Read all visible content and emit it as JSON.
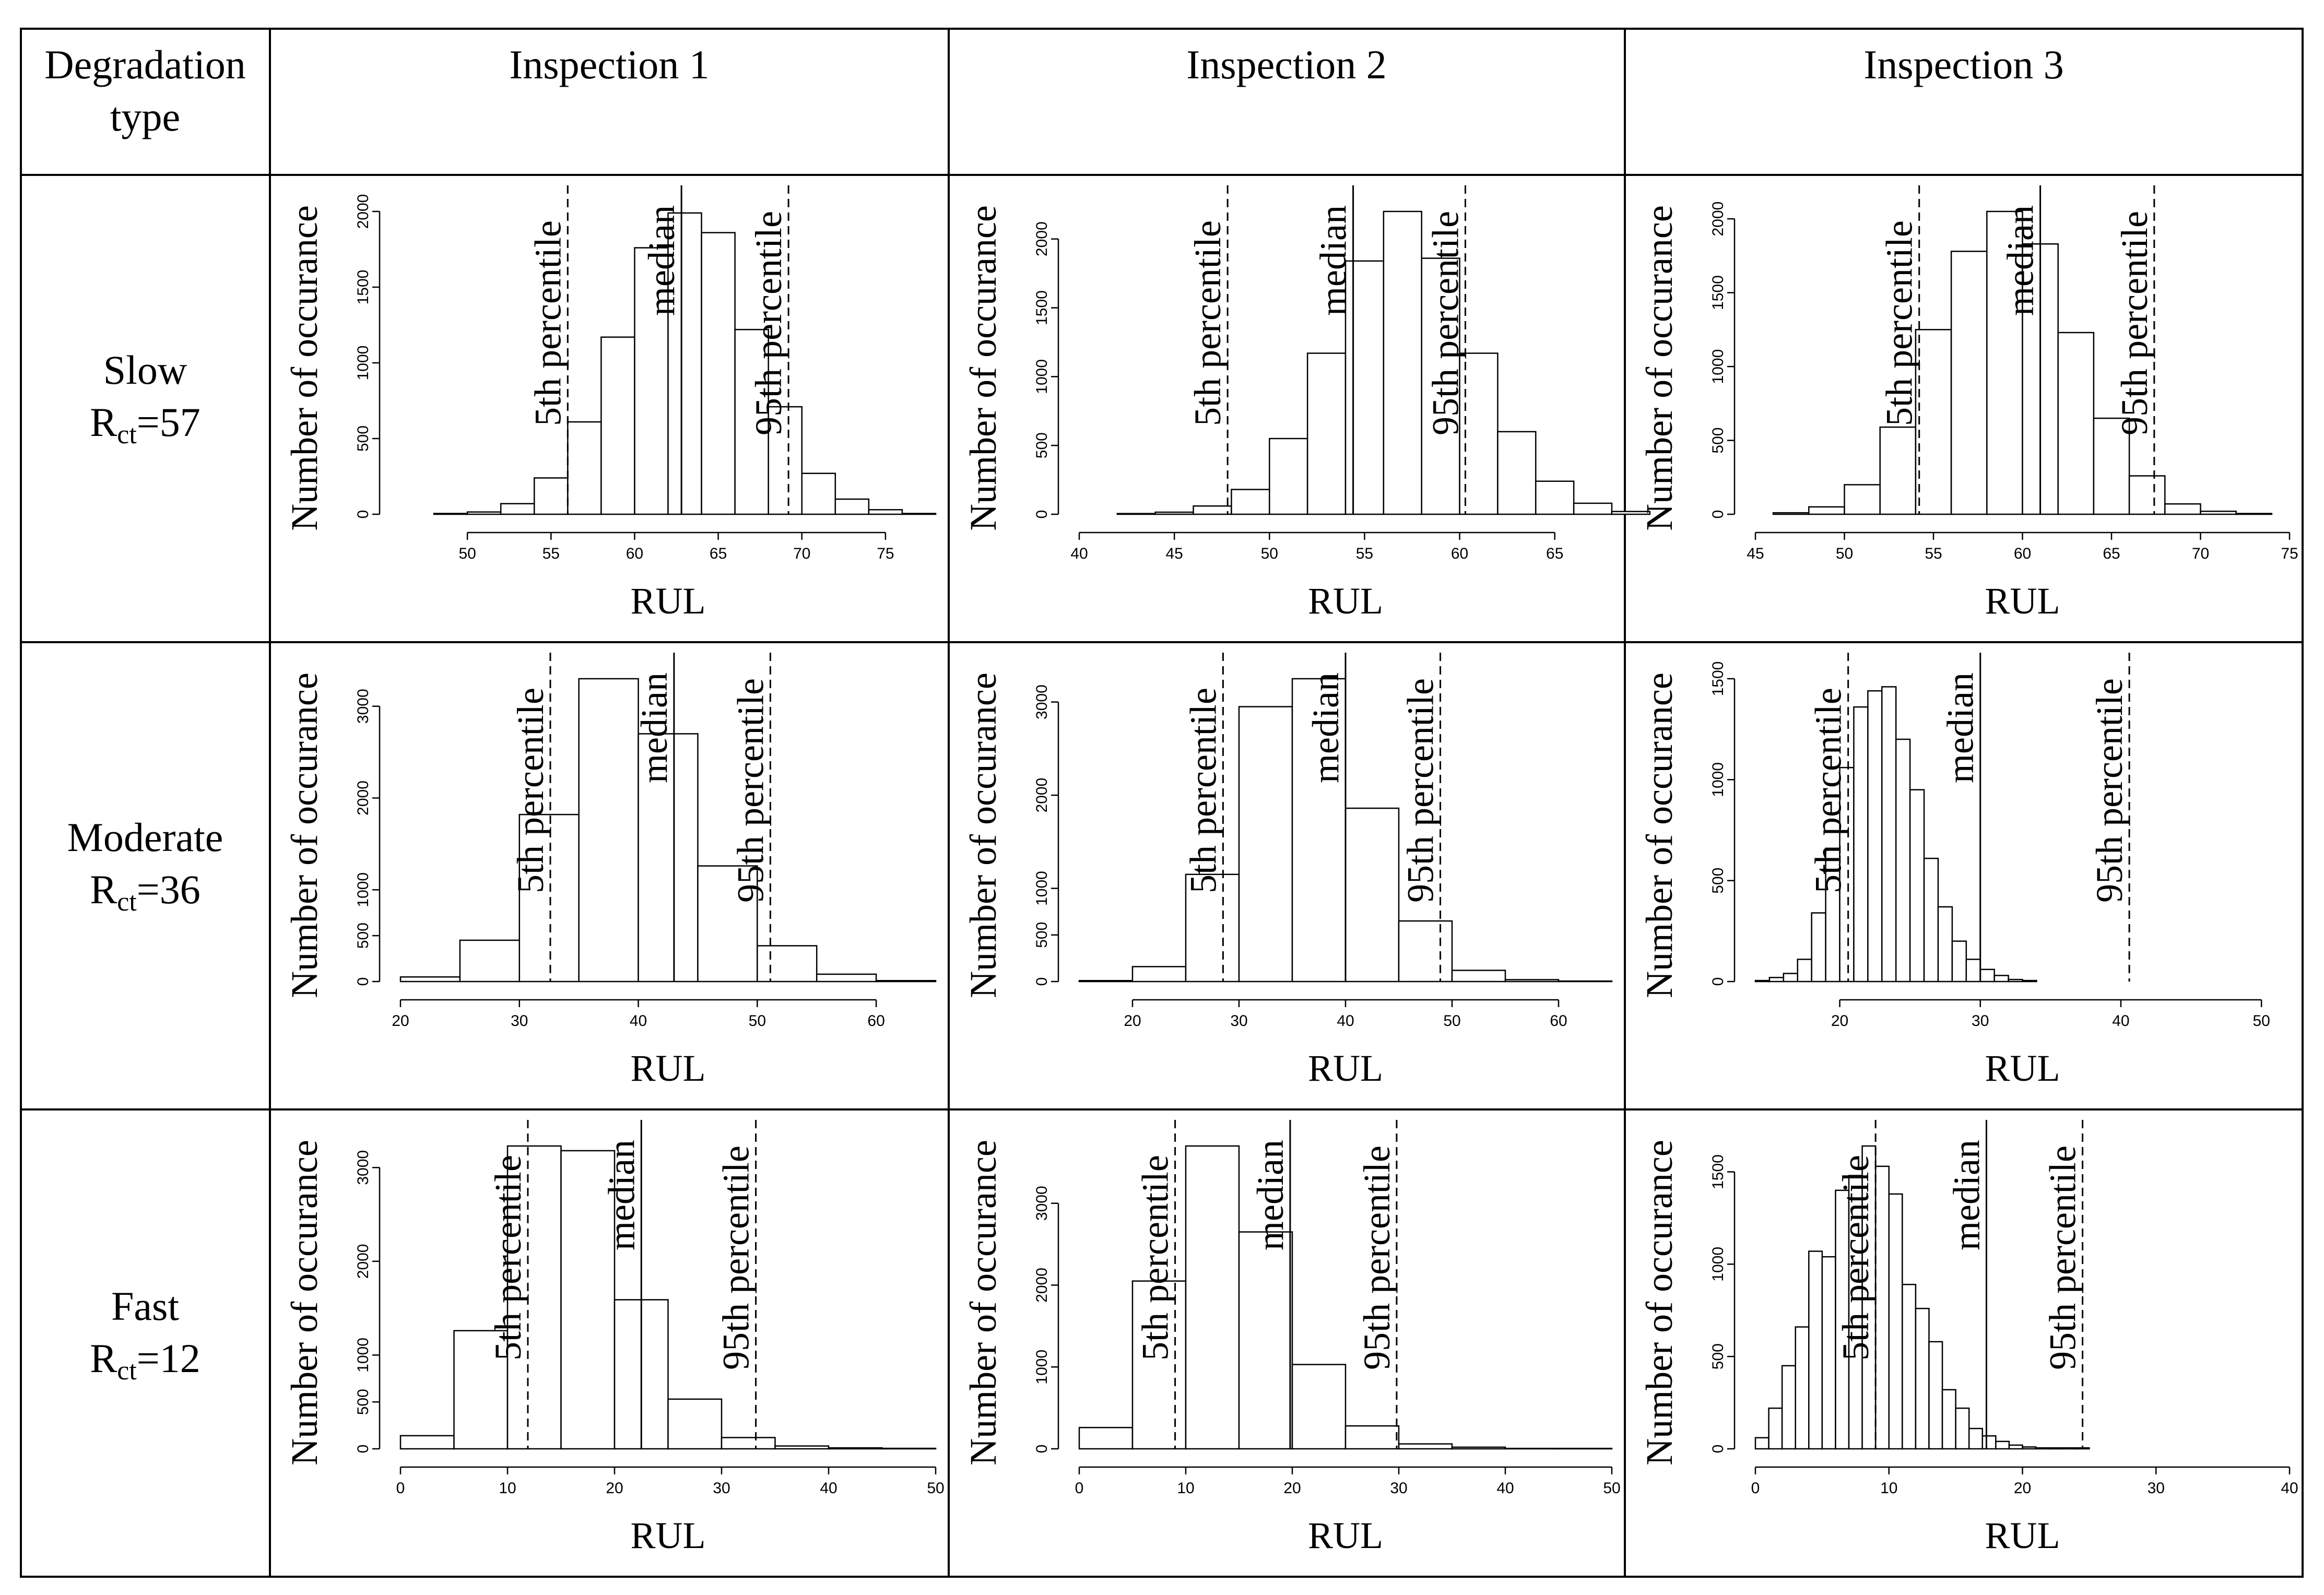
{
  "table": {
    "corner_header": [
      "Degradation",
      "type"
    ],
    "column_headers": [
      "Inspection 1",
      "Inspection 2",
      "Inspection 3"
    ],
    "row_labels": [
      {
        "name": "Slow",
        "r_base": "R",
        "r_sub": "ct",
        "r_value": "=57"
      },
      {
        "name": "Moderate",
        "r_base": "R",
        "r_sub": "ct",
        "r_value": "=36"
      },
      {
        "name": "Fast",
        "r_base": "R",
        "r_sub": "ct",
        "r_value": "=12"
      }
    ]
  },
  "labels": {
    "xlabel": "RUL",
    "ylabel": "Number of occurance",
    "p5": "5th percentile",
    "median": "median",
    "p95": "95th percentile"
  },
  "chart_data": [
    {
      "id": "slow-insp1",
      "type": "bar",
      "xlabel": "RUL",
      "ylabel": "Number of occurance",
      "bin_start": 46,
      "bin_width": 2,
      "counts": [
        0,
        5,
        15,
        70,
        240,
        610,
        1170,
        1760,
        1990,
        1860,
        1220,
        710,
        270,
        100,
        30,
        5
      ],
      "xlim": [
        46,
        78
      ],
      "ylim": [
        0,
        2000
      ],
      "xticks": [
        50,
        55,
        60,
        65,
        70,
        75
      ],
      "yticks": [
        0,
        500,
        1000,
        1500,
        2000
      ],
      "p5": 56,
      "median": 62.8,
      "p95": 69.2
    },
    {
      "id": "slow-insp2",
      "type": "bar",
      "xlabel": "RUL",
      "ylabel": "Number of occurance",
      "bin_start": 40,
      "bin_width": 2,
      "counts": [
        0,
        5,
        15,
        60,
        180,
        550,
        1170,
        1840,
        2200,
        1860,
        1170,
        600,
        240,
        80,
        20
      ],
      "xlim": [
        40,
        68
      ],
      "ylim": [
        0,
        2200
      ],
      "xticks": [
        40,
        45,
        50,
        55,
        60,
        65
      ],
      "yticks": [
        0,
        500,
        1000,
        1500,
        2000
      ],
      "p5": 47.8,
      "median": 54.4,
      "p95": 60.3
    },
    {
      "id": "slow-insp3",
      "type": "bar",
      "xlabel": "RUL",
      "ylabel": "Number of occurance",
      "bin_start": 46,
      "bin_width": 2,
      "counts": [
        10,
        50,
        200,
        590,
        1250,
        1780,
        2050,
        1830,
        1230,
        650,
        260,
        70,
        20,
        5
      ],
      "xlim": [
        45,
        75
      ],
      "ylim": [
        0,
        2050
      ],
      "xticks": [
        45,
        50,
        55,
        60,
        65,
        70,
        75
      ],
      "yticks": [
        0,
        500,
        1000,
        1500,
        2000
      ],
      "p5": 54.2,
      "median": 61,
      "p95": 67.4
    },
    {
      "id": "moderate-insp1",
      "type": "bar",
      "xlabel": "RUL",
      "ylabel": "Number of occurance",
      "bin_start": 20,
      "bin_width": 5,
      "counts": [
        50,
        450,
        1820,
        3300,
        2700,
        1260,
        390,
        80,
        10
      ],
      "xlim": [
        20,
        65
      ],
      "ylim": [
        0,
        3300
      ],
      "xticks": [
        20,
        30,
        40,
        50,
        60
      ],
      "yticks": [
        0,
        500,
        1000,
        2000,
        3000
      ],
      "p5": 32.6,
      "median": 43,
      "p95": 51.1
    },
    {
      "id": "moderate-insp2",
      "type": "bar",
      "xlabel": "RUL",
      "ylabel": "Number of occurance",
      "bin_start": 15,
      "bin_width": 5,
      "counts": [
        10,
        160,
        1150,
        2950,
        3250,
        1860,
        650,
        120,
        20,
        5
      ],
      "xlim": [
        15,
        65
      ],
      "ylim": [
        0,
        3250
      ],
      "xticks": [
        20,
        30,
        40,
        50,
        60
      ],
      "yticks": [
        0,
        500,
        1000,
        2000,
        3000
      ],
      "p5": 28.5,
      "median": 40,
      "p95": 48.9
    },
    {
      "id": "moderate-insp3",
      "type": "bar",
      "xlabel": "RUL",
      "ylabel": "Number of occurance",
      "bin_start": 14,
      "bin_width": 1,
      "counts": [
        5,
        20,
        40,
        110,
        340,
        660,
        1060,
        1360,
        1440,
        1460,
        1200,
        950,
        610,
        370,
        200,
        110,
        60,
        30,
        10,
        5
      ],
      "xlim": [
        14,
        52
      ],
      "ylim": [
        0,
        1500
      ],
      "xticks": [
        20,
        30,
        40,
        50
      ],
      "yticks": [
        0,
        500,
        1000,
        1500
      ],
      "p5": 20.6,
      "median": 30,
      "p95": 40.6
    },
    {
      "id": "fast-insp1",
      "type": "bar",
      "xlabel": "RUL",
      "ylabel": "Number of occurance",
      "bin_start": 0,
      "bin_width": 5,
      "counts": [
        140,
        1260,
        3230,
        3180,
        1590,
        530,
        120,
        30,
        10,
        5
      ],
      "xlim": [
        0,
        50
      ],
      "ylim": [
        0,
        3230
      ],
      "xticks": [
        0,
        10,
        20,
        30,
        40,
        50
      ],
      "yticks": [
        0,
        500,
        1000,
        2000,
        3000
      ],
      "p5": 11.9,
      "median": 22.5,
      "p95": 33.2
    },
    {
      "id": "fast-insp2",
      "type": "bar",
      "xlabel": "RUL",
      "ylabel": "Number of occurance",
      "bin_start": 0,
      "bin_width": 5,
      "counts": [
        260,
        2050,
        3700,
        2650,
        1030,
        280,
        60,
        20,
        5,
        5
      ],
      "xlim": [
        0,
        50
      ],
      "ylim": [
        0,
        3700
      ],
      "xticks": [
        0,
        10,
        20,
        30,
        40,
        50
      ],
      "yticks": [
        0,
        1000,
        2000,
        3000
      ],
      "p5": 9,
      "median": 19.8,
      "p95": 29.8
    },
    {
      "id": "fast-insp3",
      "type": "bar",
      "xlabel": "RUL",
      "ylabel": "Number of occurance",
      "bin_start": 0,
      "bin_width": 1,
      "counts": [
        60,
        220,
        450,
        660,
        1070,
        1040,
        1400,
        1480,
        1640,
        1530,
        1380,
        890,
        760,
        580,
        320,
        220,
        110,
        70,
        40,
        20,
        10,
        5,
        5,
        5,
        5
      ],
      "xlim": [
        0,
        40
      ],
      "ylim": [
        0,
        1640
      ],
      "xticks": [
        0,
        10,
        20,
        30,
        40
      ],
      "yticks": [
        0,
        500,
        1000,
        1500
      ],
      "p5": 9,
      "median": 17.3,
      "p95": 24.5
    }
  ]
}
